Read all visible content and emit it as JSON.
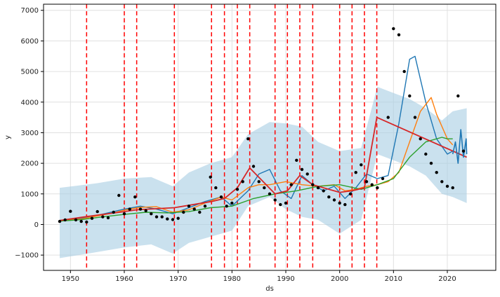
{
  "chart_data": {
    "type": "line",
    "xlabel": "ds",
    "ylabel": "y",
    "xlim": [
      1945,
      2029
    ],
    "ylim": [
      -1500,
      7200
    ],
    "grid": true,
    "x_ticks": [
      1950,
      1960,
      1970,
      1980,
      1990,
      2000,
      2010,
      2020
    ],
    "y_ticks": [
      -1000,
      0,
      1000,
      2000,
      3000,
      4000,
      5000,
      6000,
      7000
    ],
    "colors": {
      "observed": "#000000",
      "interval": "#a6cde3",
      "series_1": "#1f77b4",
      "series_2": "#ff7f0e",
      "series_3": "#2ca02c",
      "trend": "#d62728",
      "changepoint": "#ff0000"
    },
    "changepoints": [
      1953.0,
      1960.0,
      1962.3,
      1969.3,
      1976.2,
      1978.6,
      1981.0,
      1983.3,
      1988.0,
      1990.3,
      1992.6,
      1995.0,
      2000.0,
      2002.3,
      2004.6,
      2006.9
    ],
    "observed": {
      "x": [
        1948,
        1949,
        1950,
        1951,
        1952,
        1953,
        1954,
        1955,
        1956,
        1957,
        1958,
        1959,
        1960,
        1961,
        1962,
        1963,
        1964,
        1965,
        1966,
        1967,
        1968,
        1969,
        1970,
        1971,
        1972,
        1973,
        1974,
        1975,
        1976,
        1977,
        1978,
        1979,
        1980,
        1981,
        1982,
        1983,
        1984,
        1985,
        1986,
        1987,
        1988,
        1989,
        1990,
        1991,
        1992,
        1993,
        1994,
        1995,
        1996,
        1997,
        1998,
        1999,
        2000,
        2001,
        2002,
        2003,
        2004,
        2005,
        2006,
        2007,
        2008,
        2009,
        2010,
        2011,
        2012,
        2013,
        2014,
        2015,
        2016,
        2017,
        2018,
        2019,
        2020,
        2021,
        2022,
        2023
      ],
      "y": [
        100,
        150,
        430,
        150,
        100,
        80,
        200,
        420,
        250,
        220,
        400,
        950,
        350,
        500,
        900,
        500,
        450,
        350,
        250,
        250,
        180,
        160,
        200,
        400,
        600,
        500,
        400,
        600,
        1550,
        1200,
        900,
        600,
        700,
        1150,
        1400,
        2800,
        1900,
        1400,
        1200,
        1000,
        800,
        650,
        700,
        1300,
        2100,
        1800,
        1650,
        1300,
        1200,
        1100,
        900,
        800,
        700,
        650,
        1000,
        1700,
        1950,
        1400,
        1300,
        1200,
        1500,
        3500,
        6400,
        6200,
        5000,
        4200,
        3500,
        2800,
        2300,
        2000,
        1700,
        1400,
        1250,
        1200,
        4200,
        2400
      ]
    },
    "series": [
      {
        "x": [
          1948,
          1952,
          1955,
          1958,
          1960,
          1963,
          1966,
          1969,
          1972,
          1975,
          1978,
          1980,
          1983,
          1985,
          1987,
          1989,
          1991,
          1993,
          1995,
          1997,
          1999,
          2001,
          2003,
          2005,
          2007,
          2009,
          2011,
          2013,
          2014,
          2016,
          2018,
          2020,
          2021
        ],
        "y": [
          120,
          200,
          300,
          420,
          500,
          600,
          500,
          350,
          550,
          750,
          900,
          600,
          1100,
          1650,
          1800,
          1100,
          850,
          1600,
          1300,
          1100,
          1250,
          850,
          1200,
          1650,
          1500,
          1600,
          3300,
          5400,
          5500,
          4000,
          2800,
          2300,
          2400
        ]
      },
      {
        "x": [
          1948,
          1952,
          1955,
          1958,
          1960,
          1963,
          1966,
          1969,
          1972,
          1975,
          1978,
          1980,
          1983,
          1985,
          1987,
          1990,
          1993,
          1996,
          1999,
          2001,
          2003,
          2005,
          2007,
          2009,
          2011,
          2013,
          2015,
          2017,
          2018,
          2020,
          2021
        ],
        "y": [
          120,
          180,
          280,
          380,
          470,
          560,
          580,
          400,
          480,
          700,
          900,
          800,
          1200,
          1300,
          1300,
          1400,
          1300,
          1250,
          1300,
          1100,
          1150,
          1250,
          1300,
          1400,
          1700,
          2700,
          3700,
          4150,
          3600,
          2800,
          2600
        ]
      },
      {
        "x": [
          1948,
          1952,
          1956,
          1960,
          1964,
          1968,
          1972,
          1976,
          1980,
          1984,
          1988,
          1992,
          1996,
          2000,
          2004,
          2007,
          2010,
          2013,
          2016,
          2019,
          2020,
          2021
        ],
        "y": [
          110,
          160,
          250,
          330,
          400,
          380,
          420,
          550,
          600,
          850,
          1000,
          1100,
          1250,
          1300,
          1150,
          1300,
          1500,
          2200,
          2700,
          2850,
          2800,
          2800
        ]
      }
    ],
    "trend": {
      "x": [
        1948,
        1953,
        1960,
        1962.3,
        1969.3,
        1976.2,
        1978.6,
        1981,
        1983.3,
        1988,
        1990.3,
        1992.6,
        1995,
        2000,
        2002.3,
        2004.6,
        2006.9,
        2023.6
      ],
      "y": [
        130,
        260,
        420,
        480,
        550,
        750,
        850,
        1200,
        1850,
        1000,
        1100,
        1600,
        1300,
        1050,
        1100,
        1200,
        3500,
        2200
      ]
    },
    "interval": {
      "x": [
        1948,
        1955,
        1960,
        1965,
        1969,
        1972,
        1976,
        1980,
        1983,
        1987,
        1990,
        1993,
        1996,
        2000,
        2004,
        2007,
        2010,
        2013,
        2016,
        2019,
        2021,
        2023.6
      ],
      "upper": [
        1200,
        1350,
        1500,
        1550,
        1250,
        1700,
        2000,
        2200,
        2950,
        3350,
        3300,
        3200,
        2700,
        2400,
        2500,
        4500,
        4300,
        4100,
        3800,
        3400,
        3700,
        3800
      ],
      "lower": [
        -1100,
        -900,
        -750,
        -650,
        -950,
        -600,
        -400,
        -200,
        600,
        900,
        500,
        250,
        150,
        -300,
        150,
        2300,
        2100,
        1900,
        1600,
        1000,
        900,
        700
      ]
    },
    "forecast": {
      "x": [
        2021,
        2021.5,
        2022,
        2022.5,
        2023,
        2023.5,
        2023.6
      ],
      "y": [
        2300,
        2700,
        2000,
        3100,
        2200,
        2800,
        2300
      ]
    }
  }
}
